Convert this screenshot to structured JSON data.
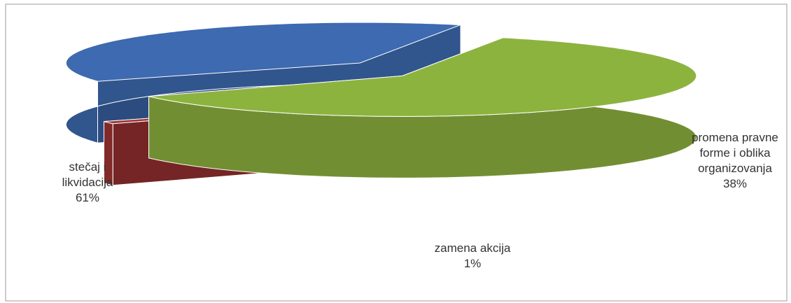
{
  "chart_data": {
    "type": "pie3d",
    "categories": [
      "stečaj i likvidacija",
      "zamena akcija",
      "promena pravne forme i oblika organizovanja"
    ],
    "values": [
      61,
      1,
      38
    ],
    "value_labels": [
      "61%",
      "1%",
      "38%"
    ],
    "colors": [
      "#8db33f",
      "#a23434",
      "#3d6ab0"
    ]
  }
}
